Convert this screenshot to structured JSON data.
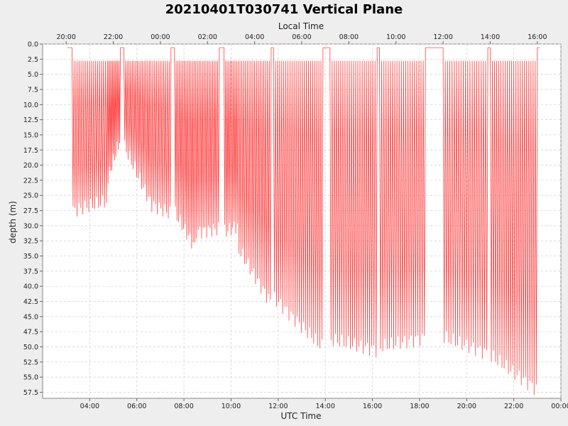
{
  "chart_data": {
    "type": "line",
    "title": "20210401T030741 Vertical Plane",
    "xlabel": "UTC Time",
    "x2label": "Local Time",
    "ylabel": "depth (m)",
    "y_inverted": true,
    "ylim": [
      0,
      58.5
    ],
    "xlim_hours": [
      2.0,
      24.0
    ],
    "grid": true,
    "series_color": "#ff4040",
    "x_ticks": [
      {
        "h": 4,
        "label": "04:00"
      },
      {
        "h": 6,
        "label": "06:00"
      },
      {
        "h": 8,
        "label": "08:00"
      },
      {
        "h": 10,
        "label": "10:00"
      },
      {
        "h": 12,
        "label": "12:00"
      },
      {
        "h": 14,
        "label": "14:00"
      },
      {
        "h": 16,
        "label": "16:00"
      },
      {
        "h": 18,
        "label": "18:00"
      },
      {
        "h": 20,
        "label": "20:00"
      },
      {
        "h": 22,
        "label": "22:00"
      },
      {
        "h": 24,
        "label": "00:00"
      }
    ],
    "x2_ticks": [
      {
        "h": 3,
        "label": "20:00"
      },
      {
        "h": 5,
        "label": "22:00"
      },
      {
        "h": 7,
        "label": "00:00"
      },
      {
        "h": 9,
        "label": "02:00"
      },
      {
        "h": 11,
        "label": "04:00"
      },
      {
        "h": 13,
        "label": "06:00"
      },
      {
        "h": 15,
        "label": "08:00"
      },
      {
        "h": 17,
        "label": "10:00"
      },
      {
        "h": 19,
        "label": "12:00"
      },
      {
        "h": 21,
        "label": "14:00"
      },
      {
        "h": 23,
        "label": "16:00"
      }
    ],
    "y_ticks": [
      0.0,
      2.5,
      5.0,
      7.5,
      10.0,
      12.5,
      15.0,
      17.5,
      20.0,
      22.5,
      25.0,
      27.5,
      30.0,
      32.5,
      35.0,
      37.5,
      40.0,
      42.5,
      45.0,
      47.5,
      50.0,
      52.5,
      55.0,
      57.5
    ],
    "surface_depth": 2.8,
    "dive_segments": [
      {
        "start": 3.25,
        "end": 4.75,
        "n": 18,
        "d_start": 27.5,
        "d_end": 26.0
      },
      {
        "start": 4.75,
        "end": 5.3,
        "n": 10,
        "d_start": 22.0,
        "d_end": 16.0
      },
      {
        "start": 5.45,
        "end": 6.6,
        "n": 16,
        "d_start": 17.0,
        "d_end": 26.0
      },
      {
        "start": 6.6,
        "end": 7.45,
        "n": 11,
        "d_start": 26.5,
        "d_end": 28.0
      },
      {
        "start": 7.6,
        "end": 8.5,
        "n": 13,
        "d_start": 28.0,
        "d_end": 33.5
      },
      {
        "start": 8.5,
        "end": 9.5,
        "n": 14,
        "d_start": 31.0,
        "d_end": 30.5
      },
      {
        "start": 9.7,
        "end": 10.3,
        "n": 9,
        "d_start": 31.0,
        "d_end": 30.0
      },
      {
        "start": 10.3,
        "end": 11.7,
        "n": 18,
        "d_start": 34.0,
        "d_end": 42.5
      },
      {
        "start": 11.8,
        "end": 13.9,
        "n": 24,
        "d_start": 42.0,
        "d_end": 50.0
      },
      {
        "start": 14.2,
        "end": 16.2,
        "n": 22,
        "d_start": 48.8,
        "d_end": 50.5
      },
      {
        "start": 16.3,
        "end": 18.25,
        "n": 21,
        "d_start": 50.0,
        "d_end": 48.5
      },
      {
        "start": 19.0,
        "end": 20.9,
        "n": 20,
        "d_start": 48.5,
        "d_end": 51.0
      },
      {
        "start": 21.0,
        "end": 23.0,
        "n": 22,
        "d_start": 51.5,
        "d_end": 57.0
      }
    ],
    "surface_intervals": [
      {
        "start": 3.05,
        "end": 3.25
      },
      {
        "start": 5.3,
        "end": 5.45
      },
      {
        "start": 7.45,
        "end": 7.6
      },
      {
        "start": 9.5,
        "end": 9.7
      },
      {
        "start": 11.7,
        "end": 11.8
      },
      {
        "start": 13.9,
        "end": 14.2
      },
      {
        "start": 16.2,
        "end": 16.3
      },
      {
        "start": 18.25,
        "end": 19.0
      },
      {
        "start": 20.9,
        "end": 21.0
      },
      {
        "start": 23.0,
        "end": 23.1
      }
    ]
  }
}
